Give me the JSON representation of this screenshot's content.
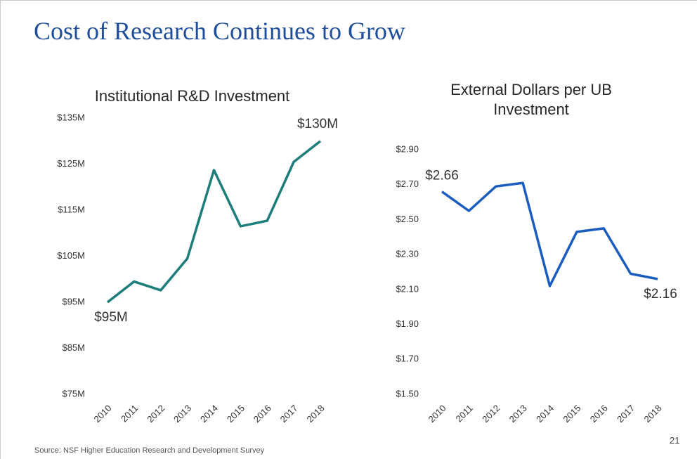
{
  "header": {
    "title": "Cost of Research Continues to Grow"
  },
  "footer": {
    "source": "Source: NSF Higher Education Research and Development Survey",
    "page": "21"
  },
  "chart_data": [
    {
      "type": "line",
      "title": "Institutional R&D Investment",
      "color": "#1d7d7a",
      "categories": [
        "2010",
        "2011",
        "2012",
        "2013",
        "2014",
        "2015",
        "2016",
        "2017",
        "2018"
      ],
      "values": [
        95,
        99.5,
        97.6,
        104.5,
        123.7,
        111.5,
        112.7,
        125.5,
        130
      ],
      "value_labels": [
        "$95M",
        null,
        null,
        null,
        null,
        null,
        null,
        null,
        "$130M"
      ],
      "ylim": [
        75,
        135
      ],
      "yticks": [
        {
          "value": 75,
          "label": "$75M"
        },
        {
          "value": 85,
          "label": "$85M"
        },
        {
          "value": 95,
          "label": "$95M"
        },
        {
          "value": 105,
          "label": "$105M"
        },
        {
          "value": 115,
          "label": "$115M"
        },
        {
          "value": 125,
          "label": "$125M"
        },
        {
          "value": 135,
          "label": "$135M"
        }
      ],
      "grid": false
    },
    {
      "type": "line",
      "title": "External Dollars per UB Investment",
      "color": "#1a5cbf",
      "categories": [
        "2010",
        "2011",
        "2012",
        "2013",
        "2014",
        "2015",
        "2016",
        "2017",
        "2018"
      ],
      "values": [
        2.66,
        2.55,
        2.69,
        2.71,
        2.12,
        2.43,
        2.45,
        2.19,
        2.16
      ],
      "value_labels": [
        "$2.66",
        null,
        null,
        null,
        null,
        null,
        null,
        null,
        "$2.16"
      ],
      "ylim": [
        1.5,
        2.9
      ],
      "yticks": [
        {
          "value": 1.5,
          "label": "$1.50"
        },
        {
          "value": 1.7,
          "label": "$1.70"
        },
        {
          "value": 1.9,
          "label": "$1.90"
        },
        {
          "value": 2.1,
          "label": "$2.10"
        },
        {
          "value": 2.3,
          "label": "$2.30"
        },
        {
          "value": 2.5,
          "label": "$2.50"
        },
        {
          "value": 2.7,
          "label": "$2.70"
        },
        {
          "value": 2.9,
          "label": "$2.90"
        }
      ],
      "grid": false
    }
  ]
}
